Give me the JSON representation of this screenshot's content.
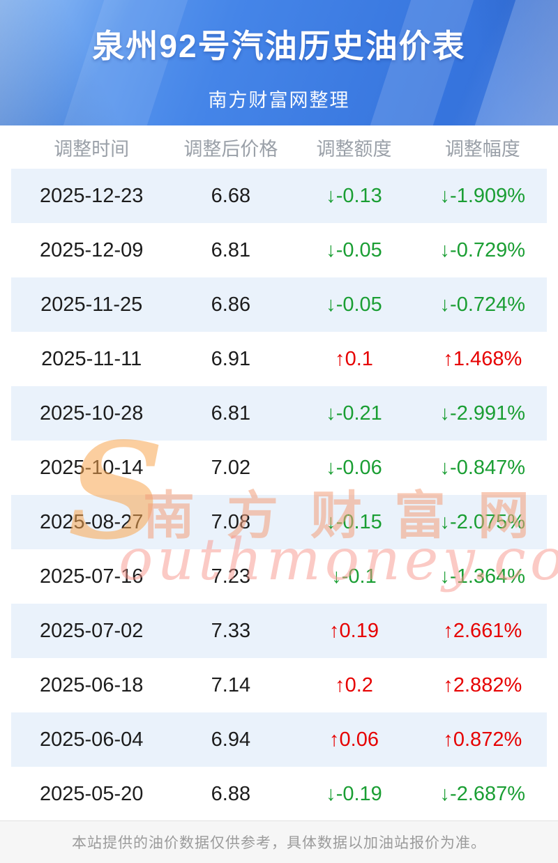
{
  "header": {
    "title": "泉州92号汽油历史油价表",
    "subtitle": "南方财富网整理"
  },
  "chart_data": {
    "type": "table",
    "columns": [
      "调整时间",
      "调整后价格",
      "调整额度",
      "调整幅度"
    ],
    "rows": [
      {
        "date": "2025-12-23",
        "price": "6.68",
        "change": "↓-0.13",
        "percent": "↓-1.909%",
        "direction": "down"
      },
      {
        "date": "2025-12-09",
        "price": "6.81",
        "change": "↓-0.05",
        "percent": "↓-0.729%",
        "direction": "down"
      },
      {
        "date": "2025-11-25",
        "price": "6.86",
        "change": "↓-0.05",
        "percent": "↓-0.724%",
        "direction": "down"
      },
      {
        "date": "2025-11-11",
        "price": "6.91",
        "change": "↑0.1",
        "percent": "↑1.468%",
        "direction": "up"
      },
      {
        "date": "2025-10-28",
        "price": "6.81",
        "change": "↓-0.21",
        "percent": "↓-2.991%",
        "direction": "down"
      },
      {
        "date": "2025-10-14",
        "price": "7.02",
        "change": "↓-0.06",
        "percent": "↓-0.847%",
        "direction": "down"
      },
      {
        "date": "2025-08-27",
        "price": "7.08",
        "change": "↓-0.15",
        "percent": "↓-2.075%",
        "direction": "down"
      },
      {
        "date": "2025-07-16",
        "price": "7.23",
        "change": "↓-0.1",
        "percent": "↓-1.364%",
        "direction": "down"
      },
      {
        "date": "2025-07-02",
        "price": "7.33",
        "change": "↑0.19",
        "percent": "↑2.661%",
        "direction": "up"
      },
      {
        "date": "2025-06-18",
        "price": "7.14",
        "change": "↑0.2",
        "percent": "↑2.882%",
        "direction": "up"
      },
      {
        "date": "2025-06-04",
        "price": "6.94",
        "change": "↑0.06",
        "percent": "↑0.872%",
        "direction": "up"
      },
      {
        "date": "2025-05-20",
        "price": "6.88",
        "change": "↓-0.19",
        "percent": "↓-2.687%",
        "direction": "down"
      }
    ]
  },
  "watermark": {
    "s": "S",
    "cn": "南方财富网",
    "en_rest": "outhmoney.com"
  },
  "footer": {
    "note": "本站提供的油价数据仅供参考，具体数据以加油站报价为准。"
  },
  "colors": {
    "up_red": "#e60000",
    "down_green": "#1a9e33",
    "banner_blue": "#3d7ce0",
    "row_stripe": "#eaf2fb"
  }
}
